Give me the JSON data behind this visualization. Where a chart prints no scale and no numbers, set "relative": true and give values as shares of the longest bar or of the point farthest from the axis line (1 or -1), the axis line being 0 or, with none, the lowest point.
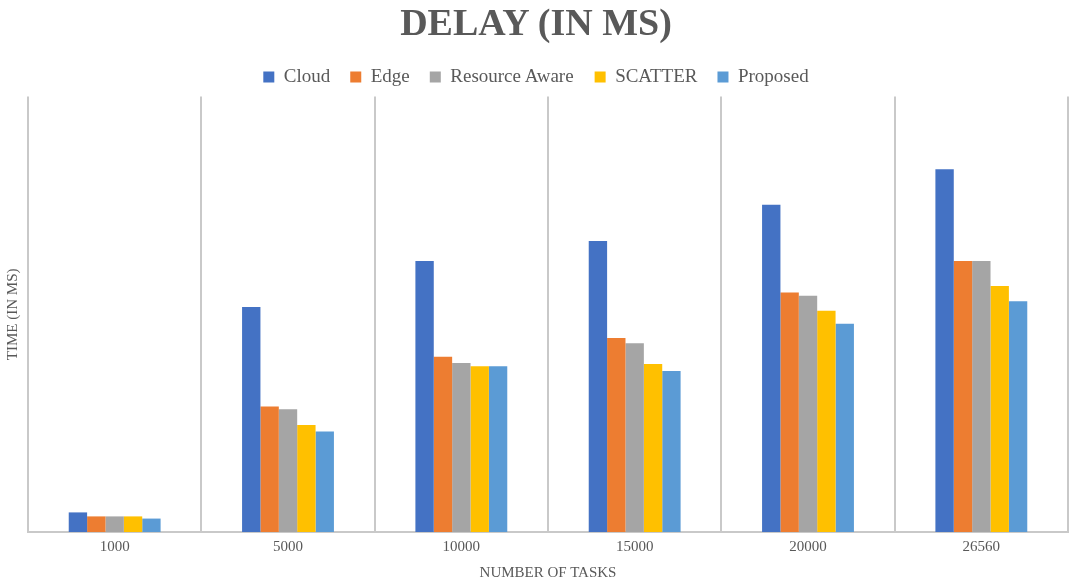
{
  "chart_data": {
    "type": "bar",
    "title": "DELAY (IN MS)",
    "xlabel": "NUMBER OF TASKS",
    "ylabel": "TIME (IN MS)",
    "categories": [
      "1000",
      "5000",
      "10000",
      "15000",
      "20000",
      "26560"
    ],
    "relative": true,
    "grid": "x",
    "legend": "top",
    "series": [
      {
        "name": "Cloud",
        "color": "#4472c4",
        "values": [
          0.054,
          0.62,
          0.747,
          0.802,
          0.902,
          1
        ]
      },
      {
        "name": "Edge",
        "color": "#ed7d31",
        "values": [
          0.043,
          0.346,
          0.483,
          0.535,
          0.66,
          0.747
        ]
      },
      {
        "name": "Resource Aware",
        "color": "#a5a5a5",
        "values": [
          0.043,
          0.338,
          0.466,
          0.52,
          0.651,
          0.747
        ]
      },
      {
        "name": "SCATTER",
        "color": "#ffc000",
        "values": [
          0.043,
          0.295,
          0.457,
          0.463,
          0.61,
          0.678
        ]
      },
      {
        "name": "Proposed",
        "color": "#5b9bd5",
        "values": [
          0.037,
          0.277,
          0.457,
          0.444,
          0.574,
          0.636
        ]
      }
    ]
  }
}
